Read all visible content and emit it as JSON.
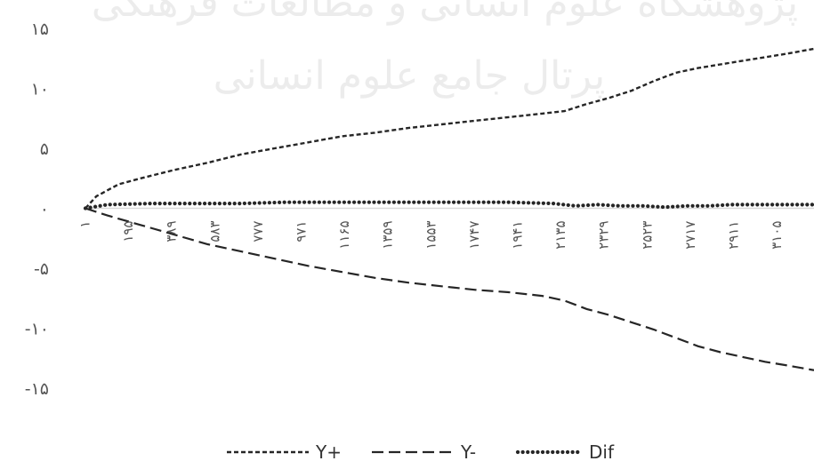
{
  "watermark": {
    "line1": "پژوهشگاه علوم انسانی و مطالعات فرهنگی",
    "line2": "پرتال جامع علوم انسانی"
  },
  "chart_data": {
    "type": "line",
    "title": "",
    "xlabel": "",
    "ylabel": "",
    "ylim": [
      -15,
      15
    ],
    "y_ticks": [
      15,
      10,
      5,
      0,
      -5,
      -10,
      -15
    ],
    "y_tick_labels": [
      "۱۵",
      "۱۰",
      "۵",
      "۰",
      "-۵",
      "-۱۰",
      "-۱۵"
    ],
    "x_tick_labels": [
      "۱",
      "۱۹۵",
      "۳۸۹",
      "۵۸۳",
      "۷۷۷",
      "۹۷۱",
      "۱۱۶۵",
      "۱۳۵۹",
      "۱۵۵۳",
      "۱۷۴۷",
      "۱۹۴۱",
      "۲۱۳۵",
      "۲۳۲۹",
      "۲۵۲۳",
      "۲۷۱۷",
      "۲۹۱۱",
      "۳۱۰۵"
    ],
    "x_ticks": [
      1,
      195,
      389,
      583,
      777,
      971,
      1165,
      1359,
      1553,
      1747,
      1941,
      2135,
      2329,
      2523,
      2717,
      2911,
      3105
    ],
    "xlim": [
      1,
      3270
    ],
    "grid": false,
    "legend_position": "bottom",
    "series": [
      {
        "name": "Y+",
        "style": "dashed-short",
        "x": [
          1,
          50,
          150,
          250,
          400,
          550,
          700,
          850,
          1000,
          1150,
          1300,
          1450,
          1600,
          1750,
          1900,
          2050,
          2150,
          2250,
          2350,
          2450,
          2550,
          2650,
          2750,
          2850,
          2950,
          3050,
          3150,
          3270
        ],
        "y": [
          0,
          1.0,
          2.0,
          2.5,
          3.2,
          3.8,
          4.5,
          5.0,
          5.5,
          6.0,
          6.3,
          6.7,
          7.0,
          7.3,
          7.6,
          7.9,
          8.1,
          8.7,
          9.2,
          9.8,
          10.6,
          11.3,
          11.7,
          12.0,
          12.3,
          12.6,
          12.9,
          13.3
        ]
      },
      {
        "name": "Y-",
        "style": "dashed-long",
        "x": [
          1,
          100,
          250,
          400,
          550,
          700,
          850,
          1000,
          1150,
          1300,
          1450,
          1600,
          1750,
          1900,
          2050,
          2150,
          2250,
          2350,
          2450,
          2550,
          2650,
          2750,
          2850,
          2950,
          3050,
          3150,
          3270
        ],
        "y": [
          0,
          -0.6,
          -1.4,
          -2.2,
          -3.0,
          -3.6,
          -4.2,
          -4.8,
          -5.3,
          -5.8,
          -6.2,
          -6.5,
          -6.8,
          -7.0,
          -7.3,
          -7.7,
          -8.4,
          -8.9,
          -9.5,
          -10.1,
          -10.8,
          -11.5,
          -12.0,
          -12.4,
          -12.8,
          -13.1,
          -13.5
        ]
      },
      {
        "name": "Dif",
        "style": "dotted",
        "x": [
          1,
          100,
          300,
          500,
          700,
          900,
          1100,
          1300,
          1500,
          1700,
          1900,
          2100,
          2200,
          2300,
          2400,
          2500,
          2600,
          2700,
          2800,
          2900,
          3000,
          3100,
          3270
        ],
        "y": [
          0,
          0.3,
          0.4,
          0.4,
          0.4,
          0.5,
          0.5,
          0.5,
          0.5,
          0.5,
          0.5,
          0.4,
          0.2,
          0.3,
          0.2,
          0.2,
          0.1,
          0.2,
          0.2,
          0.3,
          0.3,
          0.3,
          0.3
        ]
      }
    ]
  }
}
